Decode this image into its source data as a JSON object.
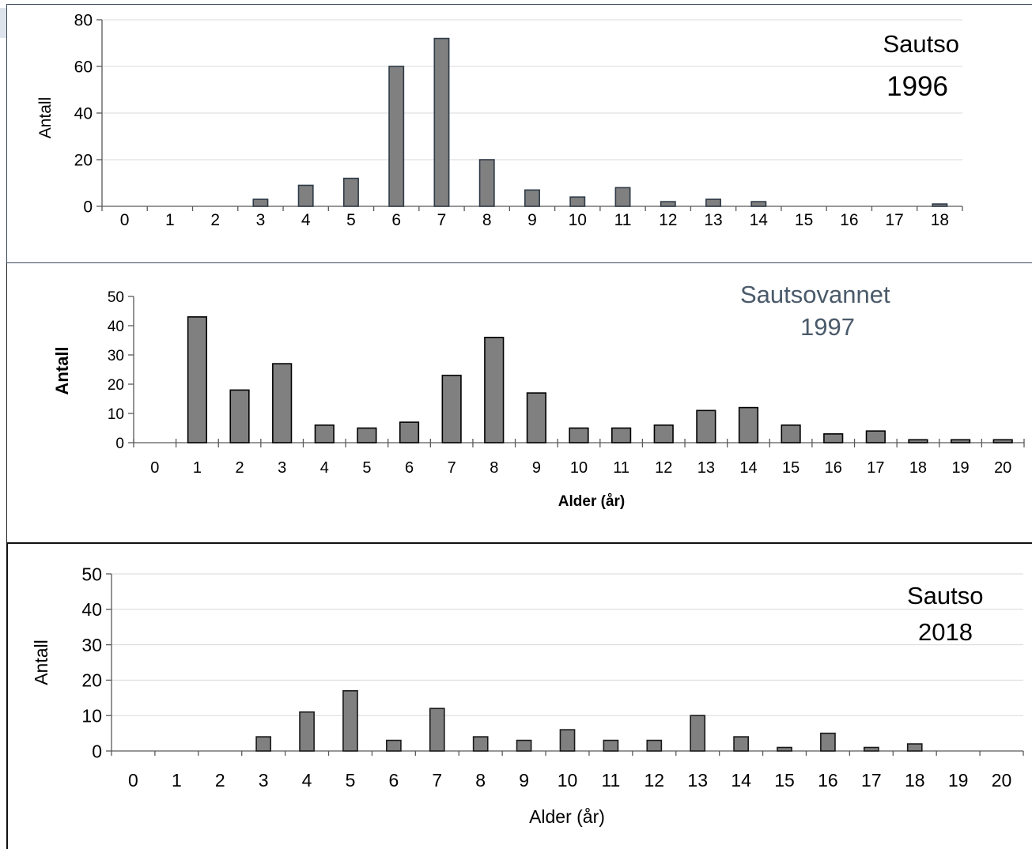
{
  "chart_data": [
    {
      "type": "bar",
      "title": "Sautso",
      "subtitle": "1996",
      "ylabel": "Antall",
      "xlabel": "",
      "ylim": [
        0,
        80
      ],
      "yticks": [
        0,
        20,
        40,
        60,
        80
      ],
      "grid": true,
      "categories": [
        "0",
        "1",
        "2",
        "3",
        "4",
        "5",
        "6",
        "7",
        "8",
        "9",
        "10",
        "11",
        "12",
        "13",
        "14",
        "15",
        "16",
        "17",
        "18"
      ],
      "values": [
        0,
        0,
        0,
        3,
        9,
        12,
        60,
        72,
        20,
        7,
        4,
        8,
        2,
        3,
        2,
        0,
        0,
        0,
        1
      ]
    },
    {
      "type": "bar",
      "title": "Sautsovannet",
      "subtitle": "1997",
      "ylabel": "Antall",
      "xlabel": "Alder (år)",
      "ylim": [
        0,
        50
      ],
      "yticks": [
        0,
        10,
        20,
        30,
        40,
        50
      ],
      "grid": false,
      "categories": [
        "0",
        "1",
        "2",
        "3",
        "4",
        "5",
        "6",
        "7",
        "8",
        "9",
        "10",
        "11",
        "12",
        "13",
        "14",
        "15",
        "16",
        "17",
        "18",
        "19",
        "20"
      ],
      "values": [
        0,
        43,
        18,
        27,
        6,
        5,
        7,
        23,
        36,
        17,
        5,
        5,
        6,
        11,
        12,
        6,
        3,
        4,
        1,
        1,
        1
      ]
    },
    {
      "type": "bar",
      "title": "Sautso",
      "subtitle": "2018",
      "ylabel": "Antall",
      "xlabel": "Alder (år)",
      "ylim": [
        0,
        50
      ],
      "yticks": [
        0,
        10,
        20,
        30,
        40,
        50
      ],
      "grid": true,
      "categories": [
        "0",
        "1",
        "2",
        "3",
        "4",
        "5",
        "6",
        "7",
        "8",
        "9",
        "10",
        "11",
        "12",
        "13",
        "14",
        "15",
        "16",
        "17",
        "18",
        "19",
        "20"
      ],
      "values": [
        0,
        0,
        0,
        4,
        11,
        17,
        3,
        12,
        4,
        3,
        6,
        3,
        3,
        10,
        4,
        1,
        5,
        1,
        2,
        0,
        0
      ]
    }
  ],
  "colors": {
    "bar_fill": "#808080",
    "bar_stroke_1996": "#2f3b48",
    "bar_stroke_1997": "#000000",
    "bar_stroke_2018": "#1a1a1a",
    "title_1997": "#4a5a6a",
    "grid": "#d9d9d9",
    "axis": "#595959"
  }
}
